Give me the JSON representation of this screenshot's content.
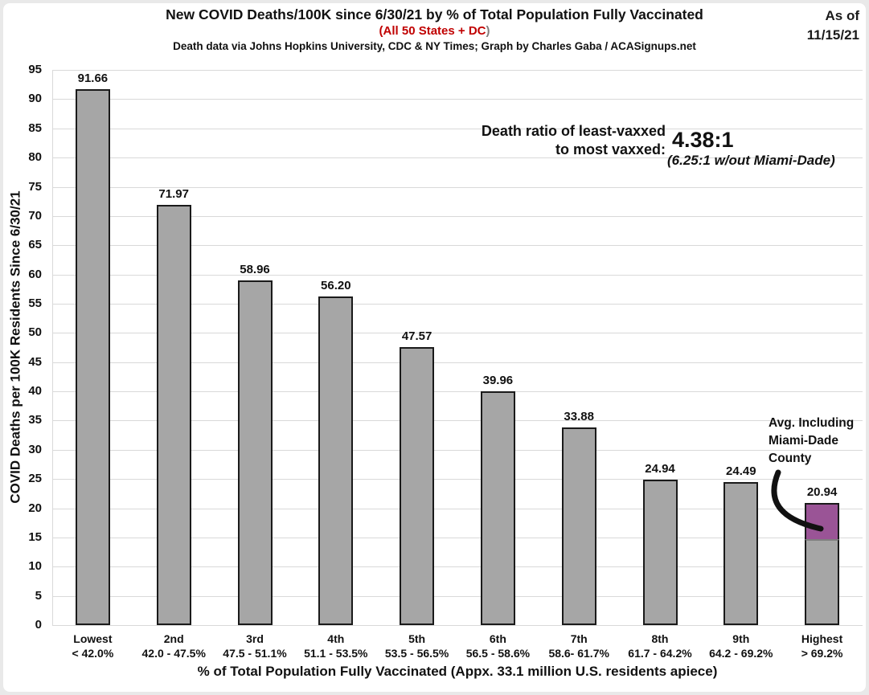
{
  "header": {
    "title": "New COVID Deaths/100K since 6/30/21 by % of Total Population Fully Vaccinated",
    "subtitle_main": "(All 50 States + DC",
    "subtitle_close": ")",
    "credit": "Death data via Johns Hopkins University, CDC & NY Times; Graph by Charles Gaba / ACASignups.net",
    "as_of_line1": "As of",
    "as_of_line2": "11/15/21"
  },
  "annotations": {
    "ratio_label_line1": "Death ratio of least-vaxxed",
    "ratio_label_line2": "to most vaxxed:",
    "ratio_value": "4.38:1",
    "ratio_note": "(6.25:1 w/out Miami-Dade)",
    "miami_line1": "Avg. Including",
    "miami_line2": "Miami-Dade",
    "miami_line3": "County"
  },
  "chart_data": {
    "type": "bar",
    "title": "New COVID Deaths/100K since 6/30/21 by % of Total Population Fully Vaccinated",
    "subtitle": "All 50 States + DC",
    "categories_rank": [
      "Lowest",
      "2nd",
      "3rd",
      "4th",
      "5th",
      "6th",
      "7th",
      "8th",
      "9th",
      "Highest"
    ],
    "categories_range": [
      "< 42.0%",
      "42.0 - 47.5%",
      "47.5 - 51.1%",
      "51.1 - 53.5%",
      "53.5 - 56.5%",
      "56.5 - 58.6%",
      "58.6- 61.7%",
      "61.7 - 64.2%",
      "64.2 - 69.2%",
      "> 69.2%"
    ],
    "values": [
      91.66,
      71.97,
      58.96,
      56.2,
      47.57,
      39.96,
      33.88,
      24.94,
      24.49,
      20.94
    ],
    "bar_labels": [
      "91.66",
      "71.97",
      "58.96",
      "56.20",
      "47.57",
      "39.96",
      "33.88",
      "24.94",
      "24.49",
      "20.94"
    ],
    "ylabel": "COVID Deaths per 100K Residents Since 6/30/21",
    "xlabel": "% of Total Population Fully Vaccinated (Appx. 33.1 million U.S. residents apiece)",
    "ylim": [
      0,
      95
    ],
    "ytick_step": 5,
    "grid": true,
    "legend": "none",
    "bar_color": "#A6A6A6",
    "bar_border_color": "#1a1a1a",
    "grid_color": "#D9D9D9",
    "subtitle_red": "#C00000",
    "highlight_segment": {
      "category_index": 9,
      "label": "Avg. Including Miami-Dade County",
      "from_value": 14.67,
      "to_value": 20.94,
      "color": "#9A5496"
    }
  }
}
